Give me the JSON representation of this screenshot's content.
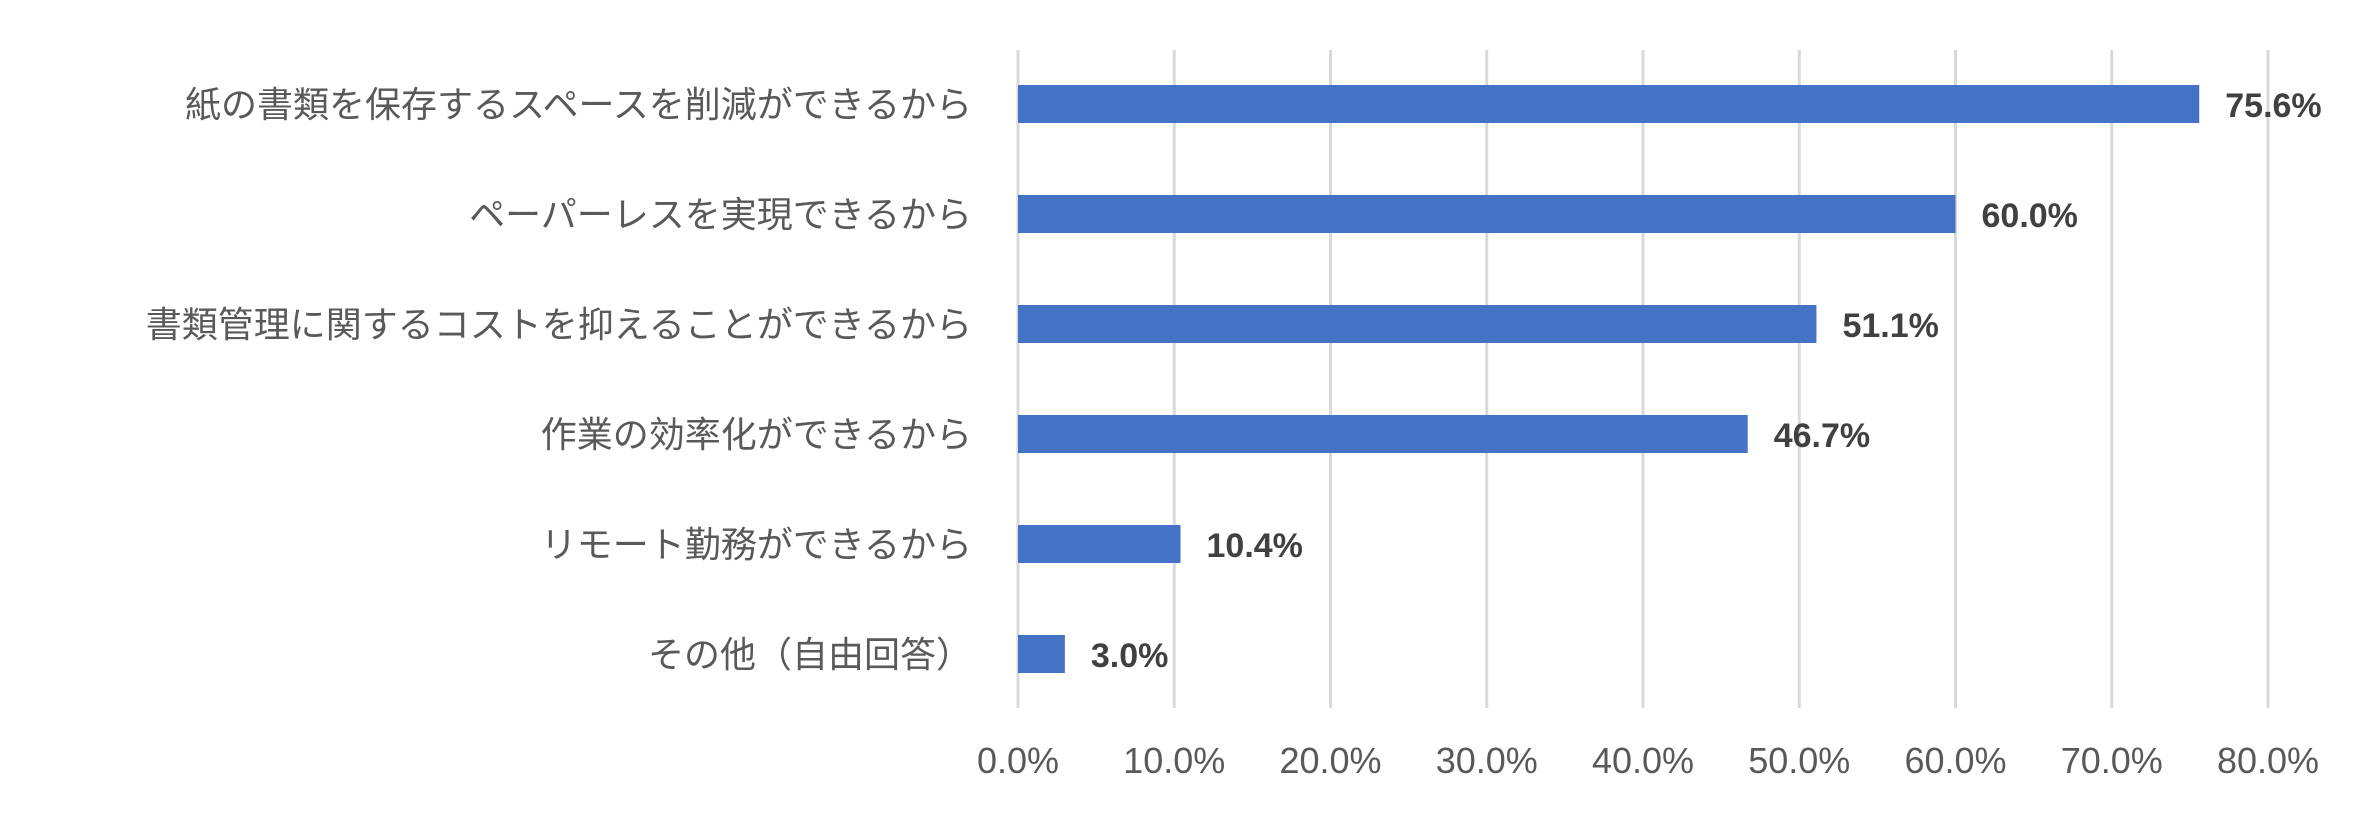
{
  "chart_data": {
    "type": "bar",
    "orientation": "horizontal",
    "categories": [
      "紙の書類を保存するスペースを削減ができるから",
      "ペーパーレスを実現できるから",
      "書類管理に関するコストを抑えることができるから",
      "作業の効率化ができるから",
      "リモート勤務ができるから",
      "その他（自由回答）"
    ],
    "values": [
      75.6,
      60.0,
      51.1,
      46.7,
      10.4,
      3.0
    ],
    "value_labels": [
      "75.6%",
      "60.0%",
      "51.1%",
      "46.7%",
      "10.4%",
      "3.0%"
    ],
    "xlim": [
      0,
      80
    ],
    "ticks": [
      0,
      10,
      20,
      30,
      40,
      50,
      60,
      70,
      80
    ],
    "tick_labels": [
      "0.0%",
      "10.0%",
      "20.0%",
      "30.0%",
      "40.0%",
      "50.0%",
      "60.0%",
      "70.0%",
      "80.0%"
    ],
    "grid": "vertical",
    "bar_color": "#4472c4",
    "title": "",
    "xlabel": "",
    "ylabel": ""
  }
}
